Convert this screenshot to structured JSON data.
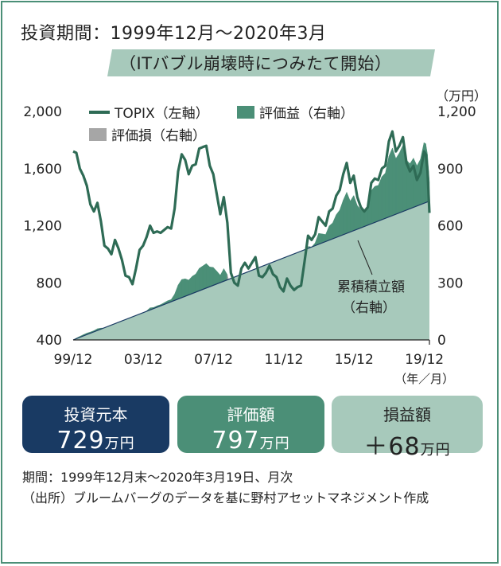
{
  "title": "投資期間：1999年12月～2020年3月",
  "subtitle": "（ITバブル崩壊時につみたて開始）",
  "right_unit": "（万円）",
  "annotation_line1": "累積積立額",
  "annotation_line2": "（右軸）",
  "x_unit": "（年／月）",
  "legend": {
    "topix": "TOPIX（左軸）",
    "gain": "評価益（右軸）",
    "loss": "評価損（右軸）"
  },
  "colors": {
    "topix": "#2e6b55",
    "gain": "#4b8f77",
    "loss": "#a6a6a6",
    "cumulative": "#a7c9bb",
    "navy": "#193a63"
  },
  "boxes": [
    {
      "label": "投資元本",
      "value": "729",
      "unit": "万円"
    },
    {
      "label": "評価額",
      "value": "797",
      "unit": "万円"
    },
    {
      "label": "損益額",
      "value": "＋68",
      "unit": "万円"
    }
  ],
  "footnote1": "期間：1999年12月末～2020年3月19日、月次",
  "footnote2": "（出所）ブルームバーグのデータを基に野村アセットマネジメント作成",
  "chart_data": {
    "type": "line",
    "x_ticks": [
      "99/12",
      "03/12",
      "07/12",
      "11/12",
      "15/12",
      "19/12"
    ],
    "y_left_ticks": [
      "2,000",
      "1,600",
      "1,200",
      "800",
      "400"
    ],
    "y_right_ticks": [
      "1,200",
      "900",
      "600",
      "300",
      "0"
    ],
    "y_left_range": [
      400,
      2000
    ],
    "y_right_range": [
      0,
      1200
    ],
    "series": [
      {
        "name": "TOPIX（左軸）",
        "axis": "left",
        "points": [
          [
            1999.92,
            1720
          ],
          [
            2000.1,
            1710
          ],
          [
            2000.3,
            1600
          ],
          [
            2000.5,
            1550
          ],
          [
            2000.7,
            1480
          ],
          [
            2000.9,
            1350
          ],
          [
            2001.1,
            1300
          ],
          [
            2001.3,
            1360
          ],
          [
            2001.5,
            1230
          ],
          [
            2001.7,
            1060
          ],
          [
            2001.9,
            1040
          ],
          [
            2002.1,
            1000
          ],
          [
            2002.3,
            1100
          ],
          [
            2002.5,
            1040
          ],
          [
            2002.7,
            960
          ],
          [
            2002.9,
            850
          ],
          [
            2003.1,
            840
          ],
          [
            2003.3,
            790
          ],
          [
            2003.5,
            900
          ],
          [
            2003.7,
            1030
          ],
          [
            2003.9,
            1060
          ],
          [
            2004.1,
            1120
          ],
          [
            2004.3,
            1200
          ],
          [
            2004.5,
            1150
          ],
          [
            2004.7,
            1160
          ],
          [
            2004.9,
            1150
          ],
          [
            2005.1,
            1170
          ],
          [
            2005.3,
            1190
          ],
          [
            2005.5,
            1180
          ],
          [
            2005.7,
            1320
          ],
          [
            2005.9,
            1580
          ],
          [
            2006.1,
            1700
          ],
          [
            2006.3,
            1660
          ],
          [
            2006.5,
            1560
          ],
          [
            2006.7,
            1620
          ],
          [
            2006.9,
            1630
          ],
          [
            2007.1,
            1740
          ],
          [
            2007.3,
            1750
          ],
          [
            2007.5,
            1760
          ],
          [
            2007.7,
            1620
          ],
          [
            2007.9,
            1560
          ],
          [
            2008.1,
            1420
          ],
          [
            2008.3,
            1280
          ],
          [
            2008.5,
            1400
          ],
          [
            2008.7,
            1220
          ],
          [
            2008.9,
            870
          ],
          [
            2009.1,
            800
          ],
          [
            2009.3,
            780
          ],
          [
            2009.5,
            900
          ],
          [
            2009.7,
            940
          ],
          [
            2009.9,
            900
          ],
          [
            2010.1,
            940
          ],
          [
            2010.3,
            980
          ],
          [
            2010.5,
            850
          ],
          [
            2010.7,
            840
          ],
          [
            2010.9,
            870
          ],
          [
            2011.1,
            920
          ],
          [
            2011.3,
            860
          ],
          [
            2011.5,
            840
          ],
          [
            2011.7,
            770
          ],
          [
            2011.9,
            740
          ],
          [
            2012.1,
            830
          ],
          [
            2012.3,
            780
          ],
          [
            2012.5,
            750
          ],
          [
            2012.7,
            770
          ],
          [
            2012.9,
            780
          ],
          [
            2013.1,
            950
          ],
          [
            2013.3,
            1130
          ],
          [
            2013.5,
            1100
          ],
          [
            2013.7,
            1140
          ],
          [
            2013.9,
            1260
          ],
          [
            2014.1,
            1230
          ],
          [
            2014.3,
            1200
          ],
          [
            2014.5,
            1300
          ],
          [
            2014.7,
            1320
          ],
          [
            2014.9,
            1410
          ],
          [
            2015.1,
            1450
          ],
          [
            2015.3,
            1560
          ],
          [
            2015.5,
            1640
          ],
          [
            2015.7,
            1500
          ],
          [
            2015.9,
            1550
          ],
          [
            2016.1,
            1400
          ],
          [
            2016.3,
            1330
          ],
          [
            2016.5,
            1300
          ],
          [
            2016.7,
            1330
          ],
          [
            2016.9,
            1500
          ],
          [
            2017.1,
            1530
          ],
          [
            2017.3,
            1520
          ],
          [
            2017.5,
            1600
          ],
          [
            2017.7,
            1620
          ],
          [
            2017.9,
            1790
          ],
          [
            2018.1,
            1860
          ],
          [
            2018.3,
            1720
          ],
          [
            2018.5,
            1760
          ],
          [
            2018.7,
            1820
          ],
          [
            2018.9,
            1640
          ],
          [
            2019.1,
            1580
          ],
          [
            2019.3,
            1620
          ],
          [
            2019.5,
            1520
          ],
          [
            2019.7,
            1570
          ],
          [
            2019.9,
            1720
          ],
          [
            2020.0,
            1700
          ],
          [
            2020.1,
            1580
          ],
          [
            2020.21,
            1290
          ]
        ]
      },
      {
        "name": "累積積立額",
        "axis": "right",
        "points": [
          [
            1999.92,
            0
          ],
          [
            2020.21,
            729
          ]
        ]
      }
    ],
    "gain_fill_peaks": [
      {
        "x": 2006.0,
        "value": 420
      },
      {
        "x": 2007.5,
        "value": 480
      },
      {
        "x": 2015.4,
        "value": 900
      },
      {
        "x": 2018.0,
        "value": 1050
      },
      {
        "x": 2019.9,
        "value": 1000
      }
    ],
    "final_values": {
      "principal": 729,
      "valuation": 797,
      "profit": 68
    }
  }
}
